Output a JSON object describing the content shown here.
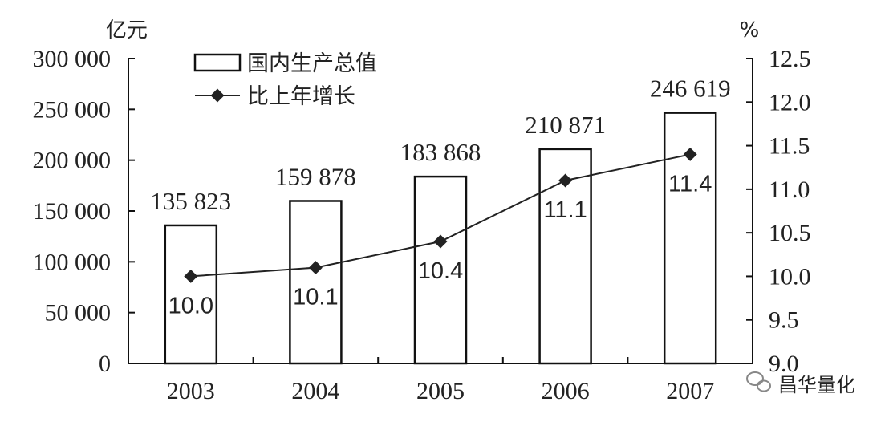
{
  "chart_data": {
    "type": "bar",
    "categories": [
      "2003",
      "2004",
      "2005",
      "2006",
      "2007"
    ],
    "y_left": {
      "unit": "亿元",
      "ticks": [
        "0",
        "50 000",
        "100 000",
        "150 000",
        "200 000",
        "250 000",
        "300 000"
      ],
      "ylim": [
        0,
        300000
      ]
    },
    "y_right": {
      "unit": "%",
      "ticks": [
        "9.0",
        "9.5",
        "10.0",
        "10.5",
        "11.0",
        "11.5",
        "12.0",
        "12.5"
      ],
      "ylim": [
        9.0,
        12.5
      ]
    },
    "series": [
      {
        "name": "国内生产总值",
        "type": "bar",
        "axis": "left",
        "values": [
          135823,
          159878,
          183868,
          210871,
          246619
        ],
        "labels": [
          "135 823",
          "159 878",
          "183 868",
          "210 871",
          "246 619"
        ]
      },
      {
        "name": "比上年增长",
        "type": "line",
        "axis": "right",
        "values": [
          10.0,
          10.1,
          10.4,
          11.1,
          11.4
        ],
        "labels": [
          "10.0",
          "10.1",
          "10.4",
          "11.1",
          "11.4"
        ]
      }
    ],
    "legend_position": "top-left",
    "grid": false,
    "colors": {
      "bar_fill": "#ffffff",
      "bar_stroke": "#111111",
      "line": "#222222",
      "marker": "#222222"
    }
  },
  "watermark": {
    "text": "昌华量化",
    "icon": "wechat-icon"
  }
}
